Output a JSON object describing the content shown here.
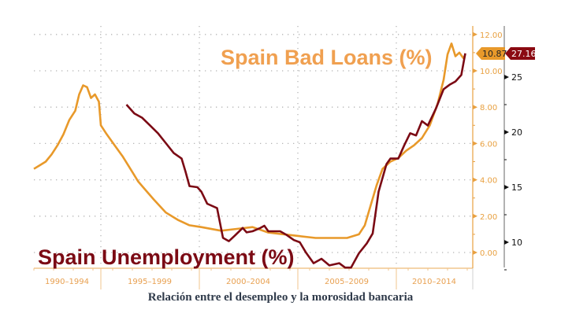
{
  "chart_data": {
    "type": "line",
    "title": "",
    "caption": "Relación entre el desempleo y la morosidad bancaria",
    "x_period_labels": [
      "1990-1994",
      "1995-1999",
      "2000-2004",
      "2005-2009",
      "2010-2014"
    ],
    "xlabel": "",
    "left_axis": {
      "label": "Spain Bad Loans (%)",
      "ticks": [
        "0.00",
        "2.00",
        "4.00",
        "6.00",
        "8.00",
        "10.00",
        "12.00"
      ],
      "range": [
        -0.8,
        12.2
      ],
      "color": "#e8992a"
    },
    "right_axis": {
      "label": "Spain Unemployment (%)",
      "ticks": [
        "10",
        "15",
        "20",
        "25"
      ],
      "range": [
        8.5,
        27.5
      ],
      "color": "#7b0a14"
    },
    "legend": [
      {
        "name": "Spain Bad Loans (%)",
        "color": "#f0a050",
        "position": "top-right"
      },
      {
        "name": "Spain Unemployment (%)",
        "color": "#7b0a14",
        "position": "bottom-left"
      }
    ],
    "last_value_badges": [
      {
        "series": "Spain Bad Loans (%)",
        "value": "10.87",
        "color": "#e8992a"
      },
      {
        "series": "Spain Unemployment (%)",
        "value": "27.16",
        "color": "#8b0a12"
      }
    ],
    "grid": true,
    "series": [
      {
        "name": "Spain Bad Loans (%)",
        "axis": "left",
        "x": [
          1990.0,
          1990.3,
          1990.6,
          1990.9,
          1991.2,
          1991.5,
          1991.8,
          1992.1,
          1992.3,
          1992.5,
          1992.7,
          1992.9,
          1993.1,
          1993.3,
          1993.4,
          1993.7,
          1994.1,
          1994.5,
          1994.9,
          1995.3,
          1995.7,
          1996.1,
          1996.7,
          1997.3,
          1997.9,
          1998.5,
          1999.5,
          2000.3,
          2001.1,
          2001.9,
          2002.7,
          2003.5,
          2004.3,
          2005.1,
          2005.9,
          2006.5,
          2006.8,
          2007.1,
          2007.4,
          2007.7,
          2008.1,
          2008.5,
          2008.9,
          2009.3,
          2009.7,
          2010.1,
          2010.5,
          2010.8,
          2011.0,
          2011.2,
          2011.4,
          2011.6,
          2011.8,
          2011.9
        ],
        "values": [
          4.6,
          4.8,
          5.0,
          5.4,
          5.9,
          6.5,
          7.3,
          7.8,
          8.7,
          9.2,
          9.1,
          8.5,
          8.7,
          8.3,
          7.0,
          6.5,
          5.9,
          5.3,
          4.6,
          3.9,
          3.4,
          2.9,
          2.2,
          1.8,
          1.5,
          1.4,
          1.2,
          1.3,
          1.4,
          1.1,
          1.0,
          0.9,
          0.8,
          0.8,
          0.8,
          1.0,
          1.5,
          2.6,
          3.7,
          4.6,
          5.0,
          5.2,
          5.6,
          5.9,
          6.3,
          7.0,
          8.2,
          9.5,
          10.9,
          11.5,
          10.8,
          11.0,
          10.7,
          10.87
        ]
      },
      {
        "name": "Spain Unemployment (%)",
        "axis": "right",
        "x": [
          1994.7,
          1995.1,
          1995.5,
          1995.9,
          1996.3,
          1996.7,
          1997.1,
          1997.5,
          1997.7,
          1997.9,
          1998.3,
          1998.5,
          1998.8,
          1999.3,
          1999.6,
          1999.9,
          2000.2,
          2000.6,
          2000.8,
          2001.1,
          2001.5,
          2001.7,
          2001.9,
          2002.5,
          2002.8,
          2003.2,
          2003.5,
          2003.8,
          2004.2,
          2004.6,
          2005.0,
          2005.5,
          2005.8,
          2006.1,
          2006.5,
          2006.9,
          2007.2,
          2007.5,
          2007.9,
          2008.1,
          2008.5,
          2008.8,
          2009.1,
          2009.4,
          2009.7,
          2010.0,
          2010.4,
          2010.8,
          2011.1,
          2011.4,
          2011.7,
          2011.9
        ],
        "values": [
          22.5,
          21.7,
          21.3,
          20.6,
          19.9,
          19.0,
          18.1,
          17.6,
          16.4,
          15.1,
          15.0,
          14.6,
          13.5,
          13.1,
          10.4,
          10.1,
          10.6,
          11.3,
          10.9,
          11.0,
          11.3,
          11.5,
          11.0,
          11.0,
          10.7,
          10.2,
          10.0,
          9.1,
          8.1,
          8.5,
          7.9,
          8.1,
          7.7,
          7.7,
          9.0,
          9.9,
          10.8,
          14.6,
          17.1,
          17.6,
          17.6,
          18.8,
          19.9,
          19.7,
          21.0,
          20.6,
          22.1,
          23.9,
          24.3,
          24.6,
          25.2,
          27.16
        ]
      }
    ]
  },
  "labels": {
    "bad_loans_title": "Spain Bad Loans (%)",
    "unemployment_title": "Spain Unemployment (%)",
    "bad_loans_badge": "10.87",
    "unemployment_badge": "27.16",
    "caption": "Relación entre el desempleo y la morosidad bancaria"
  }
}
